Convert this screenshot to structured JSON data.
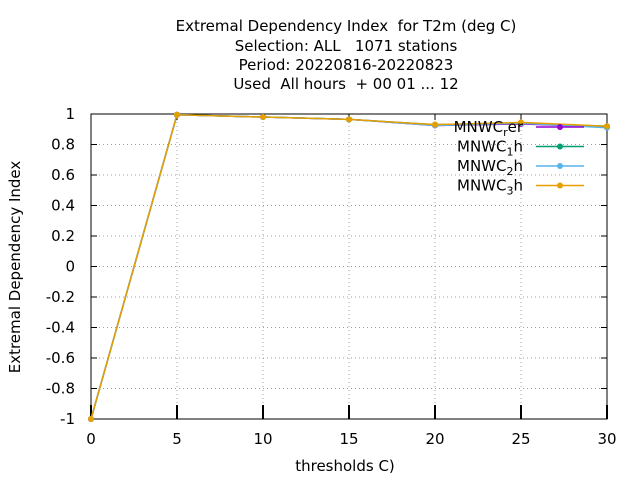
{
  "chart_data": {
    "type": "line",
    "title_lines": [
      "Extremal Dependency Index  for T2m (deg C)",
      "Selection: ALL   1071 stations",
      "Period: 20220816-20220823",
      "Used  All hours  + 00 01 ... 12"
    ],
    "xlabel": "thresholds C)",
    "ylabel": "Extremal Dependency Index",
    "xlim": [
      0,
      30
    ],
    "ylim": [
      -1,
      1
    ],
    "x_ticks": [
      "0",
      "5",
      "10",
      "15",
      "20",
      "25",
      "30"
    ],
    "y_ticks": [
      "1",
      "0.8",
      "0.6",
      "0.4",
      "0.2",
      "0",
      "-0.2",
      "-0.4",
      "-0.6",
      "-0.8",
      "-1"
    ],
    "grid": true,
    "legend_position": "top-right",
    "series": [
      {
        "name": "MNWC_rer",
        "label_main": "MNWC",
        "label_sub": "r",
        "label_tail": "er",
        "color": "#9400d3",
        "x": [
          0,
          5,
          10,
          15,
          20,
          25,
          30
        ],
        "y": [
          -1,
          0.995,
          0.98,
          0.965,
          0.925,
          0.935,
          0.915
        ]
      },
      {
        "name": "MNWC_1h",
        "label_main": "MNWC",
        "label_sub": "1",
        "label_tail": "h",
        "color": "#009e73",
        "x": [
          0,
          5,
          10,
          15,
          20,
          25,
          30
        ],
        "y": [
          -1,
          0.995,
          0.98,
          0.965,
          0.93,
          0.94,
          0.92
        ]
      },
      {
        "name": "MNWC_2h",
        "label_main": "MNWC",
        "label_sub": "2",
        "label_tail": "h",
        "color": "#56b4e9",
        "x": [
          0,
          5,
          10,
          15,
          20,
          25,
          30
        ],
        "y": [
          -1,
          0.995,
          0.98,
          0.965,
          0.925,
          0.94,
          0.91
        ]
      },
      {
        "name": "MNWC_3h",
        "label_main": "MNWC",
        "label_sub": "3",
        "label_tail": "h",
        "color": "#e69f00",
        "x": [
          0,
          5,
          10,
          15,
          20,
          25,
          30
        ],
        "y": [
          -1,
          0.995,
          0.98,
          0.965,
          0.93,
          0.945,
          0.92
        ]
      }
    ]
  }
}
